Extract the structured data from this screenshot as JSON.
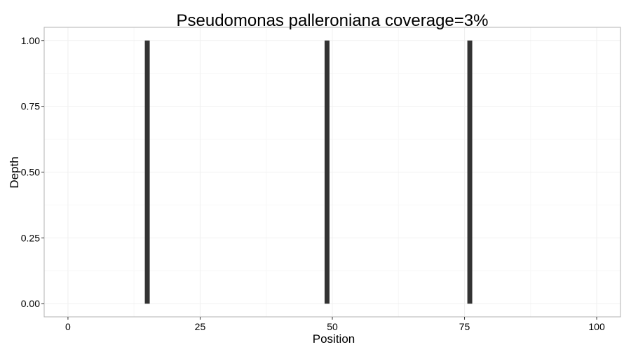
{
  "chart_data": {
    "type": "bar",
    "title": "Pseudomonas palleroniana coverage=3%",
    "xlabel": "Position",
    "ylabel": "Depth",
    "xlim": [
      -4.5,
      104.5
    ],
    "ylim": [
      -0.05,
      1.05
    ],
    "x_ticks": [
      0,
      25,
      50,
      75,
      100
    ],
    "y_ticks": [
      0.0,
      0.25,
      0.5,
      0.75,
      1.0
    ],
    "x_tick_labels": [
      "0",
      "25",
      "50",
      "75",
      "100"
    ],
    "y_tick_labels": [
      "0.00",
      "0.25",
      "0.50",
      "0.75",
      "1.00"
    ],
    "x": [
      15,
      49,
      76
    ],
    "values": [
      1,
      1,
      1
    ],
    "bar_color": "#333333",
    "grid": true,
    "grid_color": "#f0f0f0",
    "panel_border_color": "#b3b3b3",
    "legend": "none"
  }
}
